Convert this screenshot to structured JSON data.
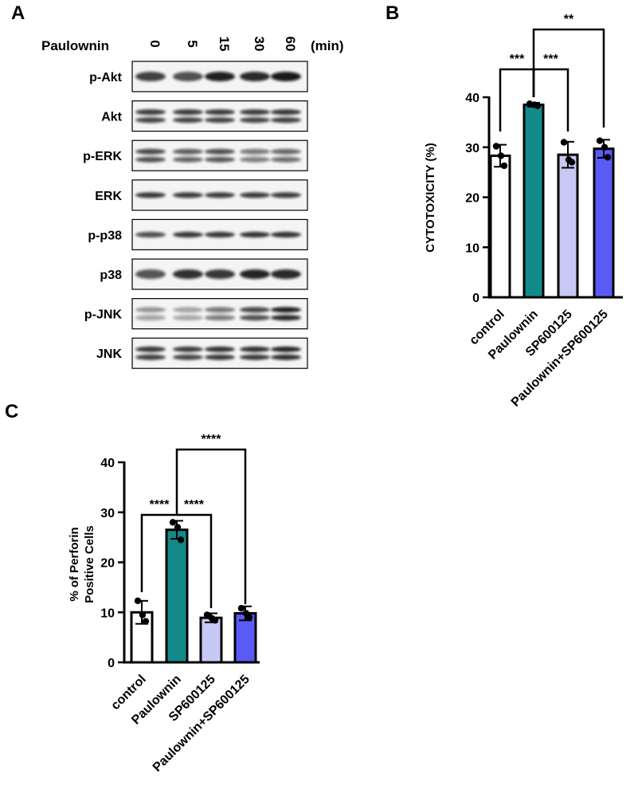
{
  "panels": {
    "a": "A",
    "b": "B",
    "c": "C"
  },
  "blot": {
    "treatment_label": "Paulownin",
    "unit_label": "(min)",
    "timepoints": [
      "0",
      "5",
      "15",
      "30",
      "60"
    ],
    "rows": [
      {
        "label": "p-Akt",
        "kind": "single",
        "intensity": [
          0.78,
          0.72,
          0.92,
          0.88,
          0.95
        ]
      },
      {
        "label": "Akt",
        "kind": "double",
        "intensity": [
          0.8,
          0.8,
          0.8,
          0.8,
          0.82
        ]
      },
      {
        "label": "p-ERK",
        "kind": "double",
        "intensity": [
          0.75,
          0.66,
          0.72,
          0.55,
          0.62
        ]
      },
      {
        "label": "ERK",
        "kind": "single_thin",
        "intensity": [
          0.82,
          0.8,
          0.8,
          0.8,
          0.8
        ]
      },
      {
        "label": "p-p38",
        "kind": "single_thin",
        "intensity": [
          0.72,
          0.82,
          0.82,
          0.84,
          0.84
        ]
      },
      {
        "label": "p38",
        "kind": "single",
        "intensity": [
          0.7,
          0.85,
          0.82,
          0.9,
          0.88
        ]
      },
      {
        "label": "p-JNK",
        "kind": "double",
        "intensity": [
          0.38,
          0.32,
          0.55,
          0.75,
          0.92
        ]
      },
      {
        "label": "JNK",
        "kind": "double",
        "intensity": [
          0.82,
          0.8,
          0.85,
          0.85,
          0.9
        ]
      }
    ]
  },
  "chart_data": [
    {
      "type": "bar",
      "categories": [
        "control",
        "Paulownin",
        "SP600125",
        "Paulownin+SP600125"
      ],
      "values": [
        28.3,
        38.5,
        28.5,
        29.7
      ],
      "errors": [
        2.2,
        0.4,
        2.6,
        1.8
      ],
      "points": [
        [
          30.2,
          28.3,
          26.3
        ],
        [
          38.7,
          38.5,
          38.3
        ],
        [
          31.0,
          27.5,
          27.0
        ],
        [
          31.3,
          30.0,
          28.0
        ]
      ],
      "bar_colors": [
        "#ffffff",
        "#138a8a",
        "#c8c8f5",
        "#5a5af5"
      ],
      "title": "",
      "xlabel": "",
      "ylabel": "CYTOTOXICITY (%)",
      "ylim": [
        0,
        40
      ],
      "yticks": [
        0,
        10,
        20,
        30,
        40
      ],
      "significance": [
        {
          "from": 0,
          "to": 1,
          "label": "***",
          "level": 0
        },
        {
          "from": 1,
          "to": 2,
          "label": "***",
          "level": 0
        },
        {
          "from": 1,
          "to": 3,
          "label": "**",
          "level": 1
        }
      ]
    },
    {
      "type": "bar",
      "categories": [
        "control",
        "Paulownin",
        "SP600125",
        "Paulownin+SP600125"
      ],
      "values": [
        10.0,
        26.5,
        8.9,
        9.8
      ],
      "errors": [
        2.3,
        1.8,
        0.9,
        1.4
      ],
      "points": [
        [
          12.3,
          9.5,
          8.2
        ],
        [
          28.0,
          27.0,
          24.5
        ],
        [
          9.5,
          8.8,
          8.4
        ],
        [
          10.8,
          9.8,
          9.0
        ]
      ],
      "bar_colors": [
        "#ffffff",
        "#138a8a",
        "#c8c8f5",
        "#5a5af5"
      ],
      "title": "",
      "xlabel": "",
      "ylabel": [
        "% of Perforin",
        "Positive Cells"
      ],
      "ylim": [
        0,
        40
      ],
      "yticks": [
        0,
        10,
        20,
        30,
        40
      ],
      "significance": [
        {
          "from": 0,
          "to": 1,
          "label": "****",
          "level": 0
        },
        {
          "from": 1,
          "to": 2,
          "label": "****",
          "level": 0
        },
        {
          "from": 1,
          "to": 3,
          "label": "****",
          "level": 1
        }
      ]
    }
  ]
}
